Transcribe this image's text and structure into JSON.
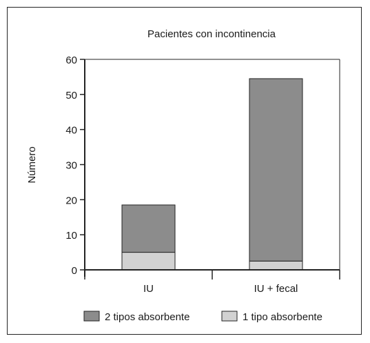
{
  "chart_data": {
    "type": "bar",
    "stacked": true,
    "title": "Pacientes con incontinencia",
    "ylabel": "Número",
    "xlabel": "",
    "ylim": [
      0,
      60
    ],
    "yticks": [
      0,
      10,
      20,
      30,
      40,
      50,
      60
    ],
    "categories": [
      "IU",
      "IU + fecal"
    ],
    "series": [
      {
        "name": "1 tipo absorbente",
        "values": [
          5,
          2.5
        ],
        "color": "#d2d2d2"
      },
      {
        "name": "2 tipos absorbente",
        "values": [
          13.5,
          52
        ],
        "color": "#8c8c8c"
      }
    ],
    "legend_order": [
      "2 tipos absorbente",
      "1 tipo absorbente"
    ],
    "legend_position": "bottom",
    "grid": false
  }
}
